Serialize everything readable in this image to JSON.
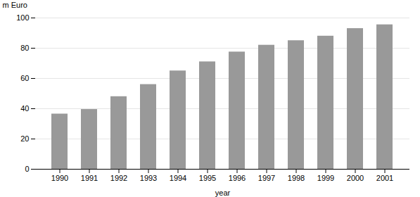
{
  "chart_data": {
    "type": "bar",
    "categories": [
      "1990",
      "1991",
      "1992",
      "1993",
      "1994",
      "1995",
      "1996",
      "1997",
      "1998",
      "1999",
      "2000",
      "2001"
    ],
    "values": [
      36.5,
      39.5,
      48.0,
      56.0,
      65.0,
      71.0,
      77.5,
      82.0,
      85.0,
      88.0,
      93.0,
      95.5
    ],
    "color": "#999999",
    "xlabel": "year",
    "ylabel": "m Euro",
    "ylim": [
      0,
      100
    ],
    "yticks": [
      0,
      20,
      40,
      60,
      80,
      100
    ],
    "grid": true
  }
}
